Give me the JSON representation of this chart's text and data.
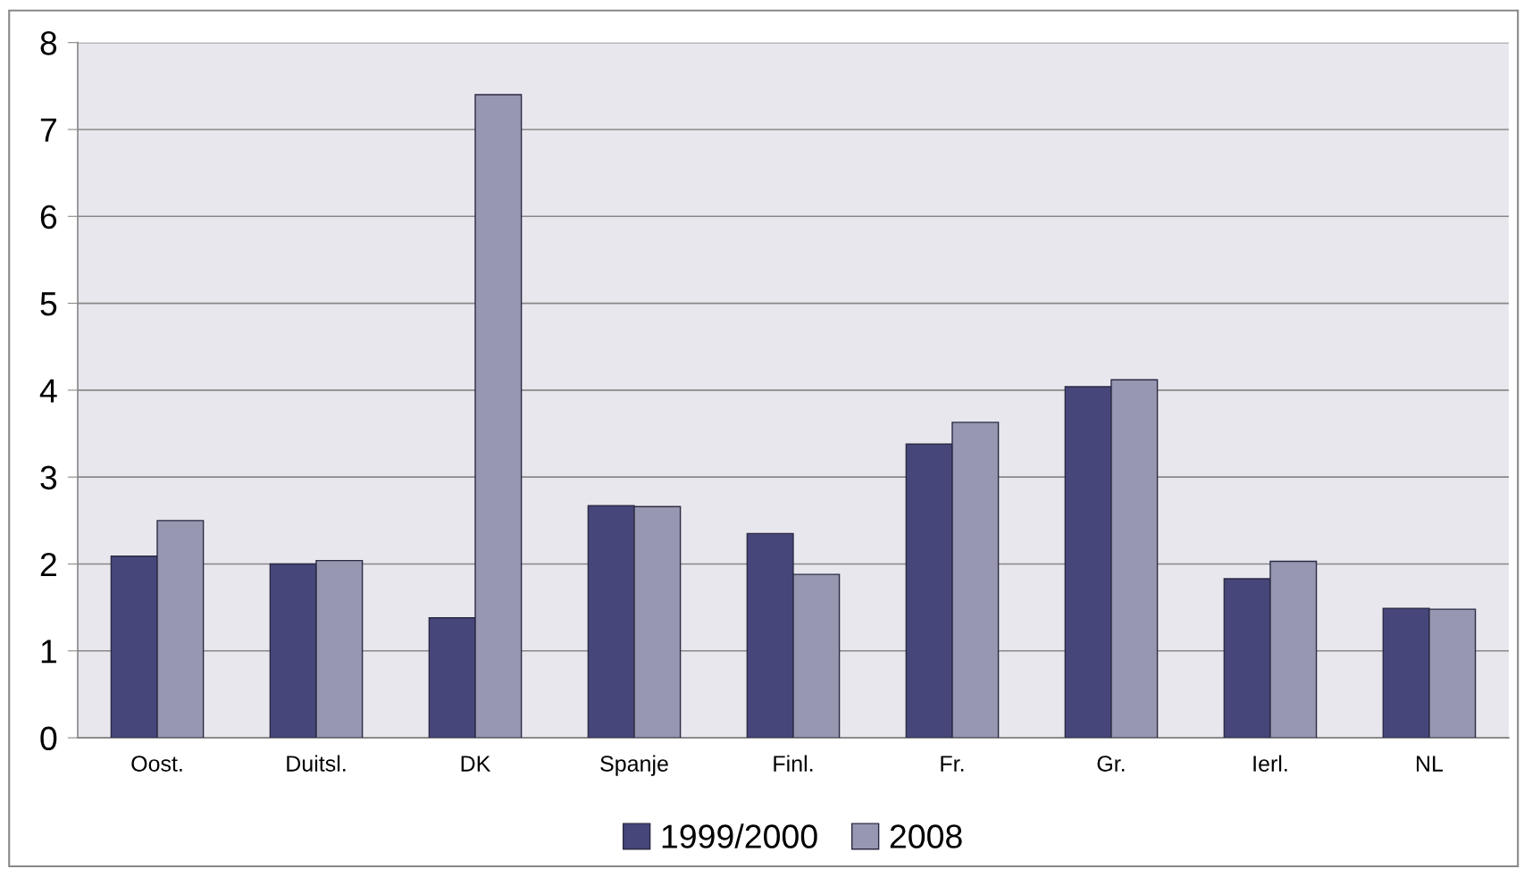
{
  "chart_data": {
    "type": "bar",
    "categories": [
      "Oost.",
      "Duitsl.",
      "DK",
      "Spanje",
      "Finl.",
      "Fr.",
      "Gr.",
      "Ierl.",
      "NL"
    ],
    "series": [
      {
        "name": "1999/2000",
        "color": "#46467a",
        "values": [
          2.09,
          2.0,
          1.38,
          2.67,
          2.35,
          3.38,
          4.04,
          1.83,
          1.49
        ]
      },
      {
        "name": "2008",
        "color": "#9797b1",
        "values": [
          2.5,
          2.04,
          7.4,
          2.66,
          1.88,
          3.63,
          4.12,
          2.03,
          1.48
        ]
      }
    ],
    "ylim": [
      0,
      8
    ],
    "yticks": [
      0,
      1,
      2,
      3,
      4,
      5,
      6,
      7,
      8
    ],
    "grid": "y",
    "legend": "bottom"
  }
}
